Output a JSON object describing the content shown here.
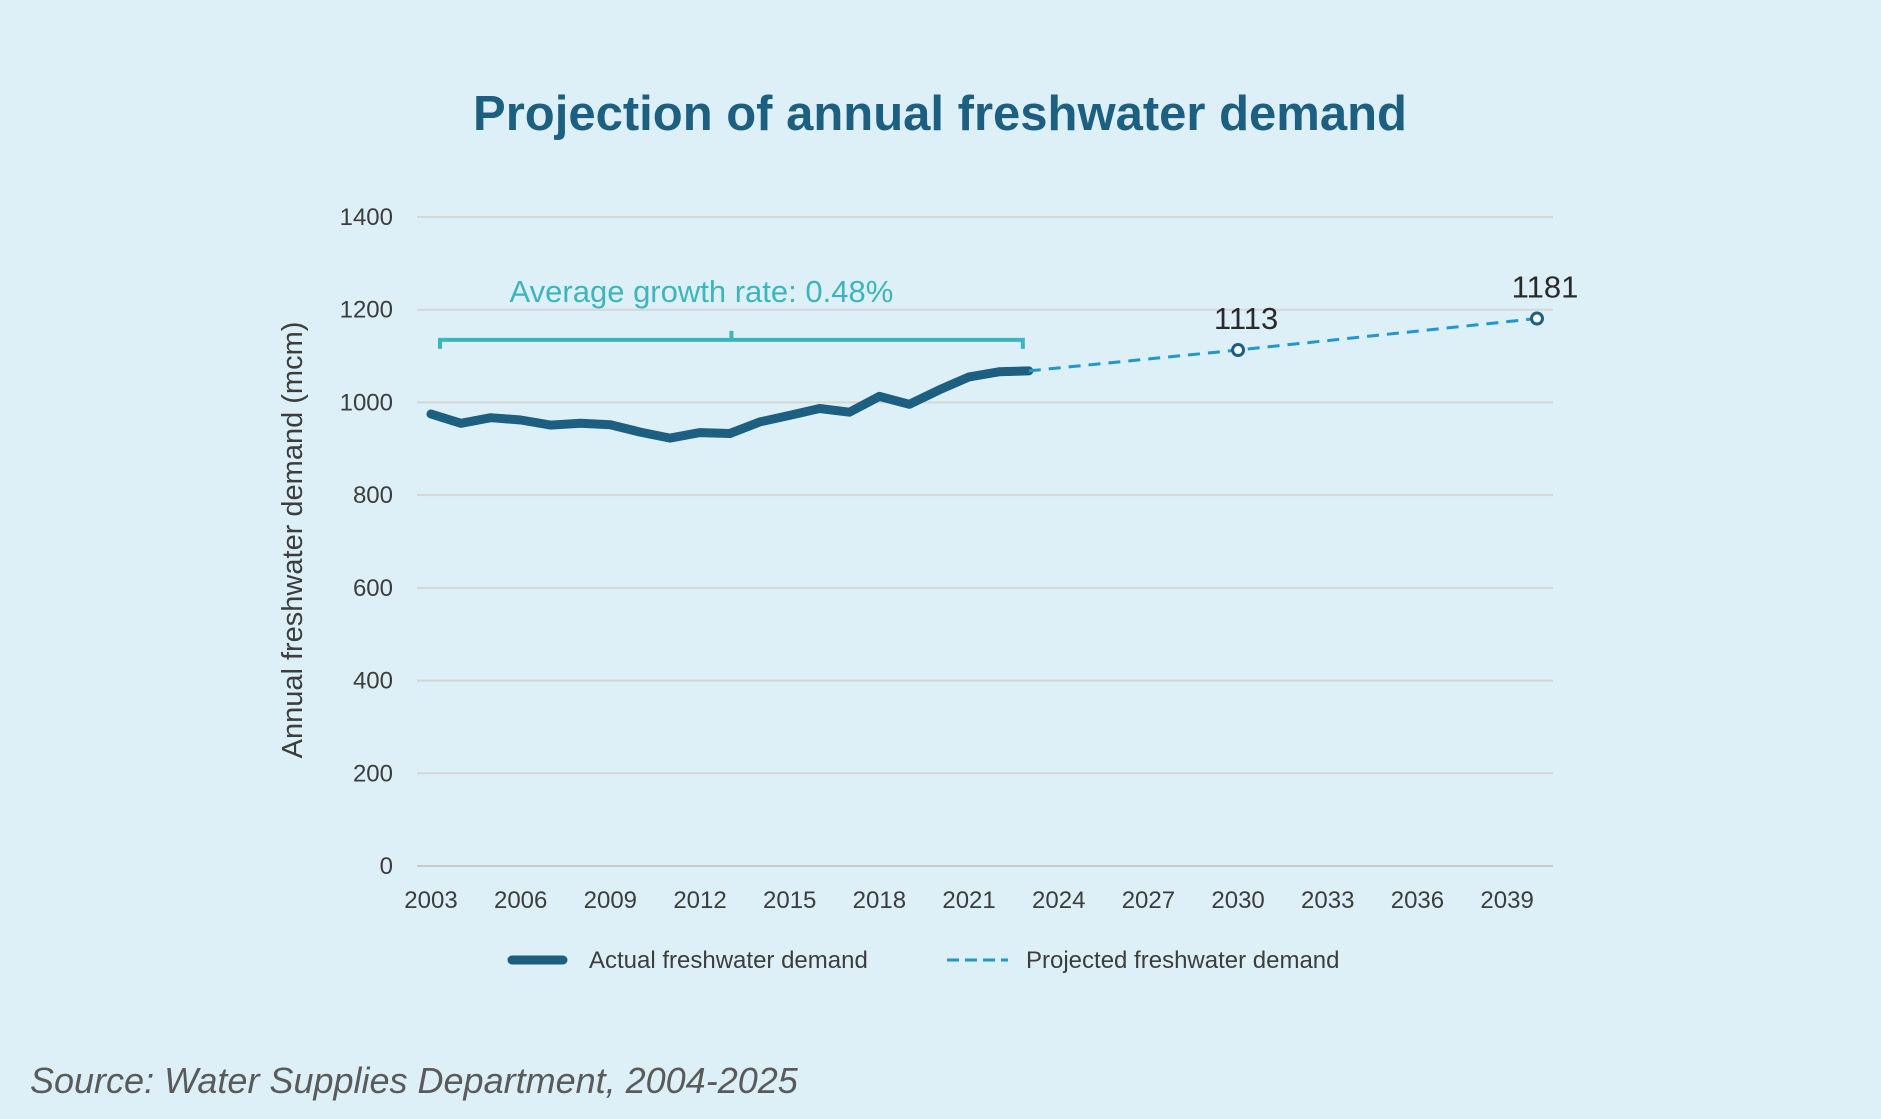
{
  "chart_data": {
    "type": "line",
    "title": "Projection of annual freshwater demand",
    "xlabel": "",
    "ylabel": "Annual freshwater demand (mcm)",
    "xlim": [
      2003,
      2040
    ],
    "ylim": [
      0,
      1400
    ],
    "x_ticks": [
      "2003",
      "2006",
      "2009",
      "2012",
      "2015",
      "2018",
      "2021",
      "2024",
      "2027",
      "2030",
      "2033",
      "2036",
      "2039"
    ],
    "y_ticks": [
      "0",
      "200",
      "400",
      "600",
      "800",
      "1000",
      "1200",
      "1400"
    ],
    "grid": true,
    "legend_position": "bottom",
    "series": [
      {
        "name": "Actual freshwater demand",
        "style": "solid",
        "color": "#1c5f80",
        "x": [
          2003,
          2004,
          2005,
          2006,
          2007,
          2008,
          2009,
          2010,
          2011,
          2012,
          2013,
          2014,
          2015,
          2016,
          2017,
          2018,
          2019,
          2020,
          2021,
          2022,
          2023
        ],
        "y": [
          975,
          955,
          967,
          962,
          951,
          955,
          952,
          936,
          923,
          935,
          933,
          958,
          972,
          987,
          979,
          1013,
          996,
          1027,
          1055,
          1066,
          1068
        ]
      },
      {
        "name": "Projected freshwater demand",
        "style": "dashed",
        "color": "#2297cc",
        "x": [
          2023,
          2030,
          2040
        ],
        "y": [
          1068,
          1113,
          1181
        ]
      }
    ],
    "point_labels": [
      {
        "x": 2030,
        "y": 1113,
        "text": "1113"
      },
      {
        "x": 2040,
        "y": 1181,
        "text": "1181"
      }
    ],
    "annotation": {
      "text": "Average growth rate: 0.48%",
      "x_start": 2003,
      "x_end": 2023,
      "y": 1135,
      "color": "#3db5bd"
    }
  },
  "source_text": "Source: Water Supplies Department, 2004-2025"
}
